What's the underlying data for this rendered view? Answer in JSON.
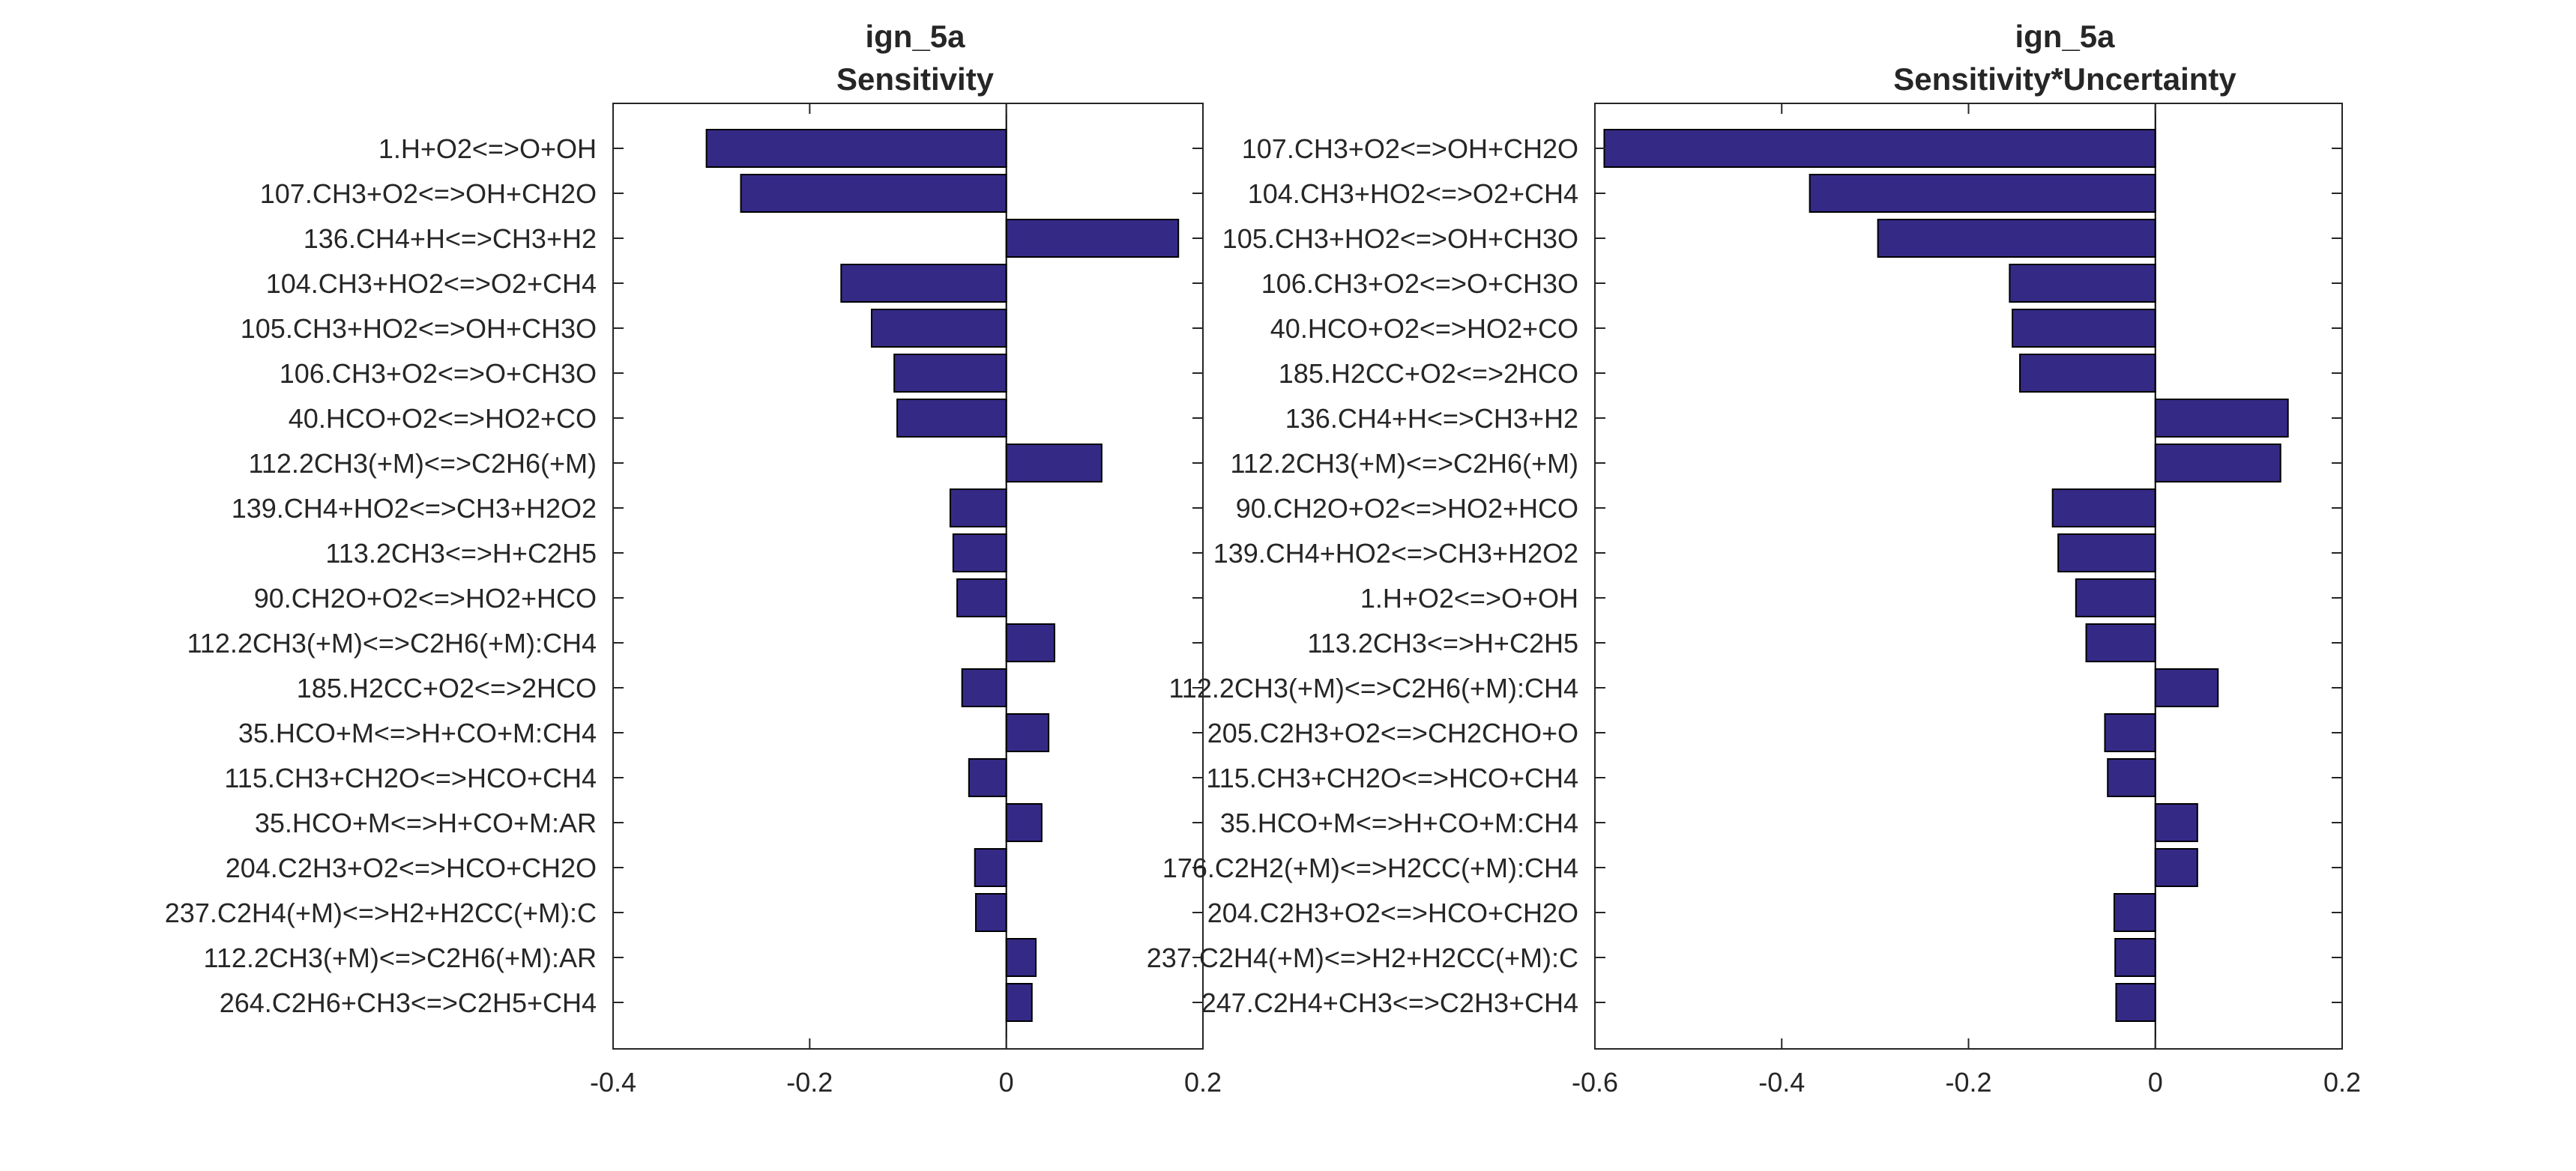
{
  "chart_data": [
    {
      "type": "bar",
      "orientation": "horizontal",
      "title": [
        "ign_5a",
        "Sensitivity"
      ],
      "xlim": [
        -0.4,
        0.2
      ],
      "xticks": [
        -0.4,
        -0.2,
        0,
        0.2
      ],
      "xtick_labels": [
        "-0.4",
        "-0.2",
        "0",
        "0.2"
      ],
      "bar_color": "#342a86",
      "grid": false,
      "categories": [
        "1.H+O2<=>O+OH",
        "107.CH3+O2<=>OH+CH2O",
        "136.CH4+H<=>CH3+H2",
        "104.CH3+HO2<=>O2+CH4",
        "105.CH3+HO2<=>OH+CH3O",
        "106.CH3+O2<=>O+CH3O",
        "40.HCO+O2<=>HO2+CO",
        "112.2CH3(+M)<=>C2H6(+M)",
        "139.CH4+HO2<=>CH3+H2O2",
        "113.2CH3<=>H+C2H5",
        "90.CH2O+O2<=>HO2+HCO",
        "112.2CH3(+M)<=>C2H6(+M):CH4",
        "185.H2CC+O2<=>2HCO",
        "35.HCO+M<=>H+CO+M:CH4",
        "115.CH3+CH2O<=>HCO+CH4",
        "35.HCO+M<=>H+CO+M:AR",
        "204.C2H3+O2<=>HCO+CH2O",
        "237.C2H4(+M)<=>H2+H2CC(+M):C",
        "112.2CH3(+M)<=>C2H6(+M):AR",
        "264.C2H6+CH3<=>C2H5+CH4"
      ],
      "values": [
        -0.305,
        -0.27,
        0.175,
        -0.168,
        -0.137,
        -0.114,
        -0.111,
        0.097,
        -0.057,
        -0.054,
        -0.05,
        0.049,
        -0.045,
        0.043,
        -0.038,
        0.036,
        -0.032,
        -0.031,
        0.03,
        0.026
      ]
    },
    {
      "type": "bar",
      "orientation": "horizontal",
      "title": [
        "ign_5a",
        "Sensitivity*Uncertainty"
      ],
      "xlim": [
        -0.6,
        0.2
      ],
      "xticks": [
        -0.6,
        -0.4,
        -0.2,
        0,
        0.2
      ],
      "xtick_labels": [
        "-0.6",
        "-0.4",
        "-0.2",
        "0",
        "0.2"
      ],
      "bar_color": "#342a86",
      "grid": false,
      "categories": [
        "107.CH3+O2<=>OH+CH2O",
        "104.CH3+HO2<=>O2+CH4",
        "105.CH3+HO2<=>OH+CH3O",
        "106.CH3+O2<=>O+CH3O",
        "40.HCO+O2<=>HO2+CO",
        "185.H2CC+O2<=>2HCO",
        "136.CH4+H<=>CH3+H2",
        "112.2CH3(+M)<=>C2H6(+M)",
        "90.CH2O+O2<=>HO2+HCO",
        "139.CH4+HO2<=>CH3+H2O2",
        "1.H+O2<=>O+OH",
        "113.2CH3<=>H+C2H5",
        "112.2CH3(+M)<=>C2H6(+M):CH4",
        "205.C2H3+O2<=>CH2CHO+O",
        "115.CH3+CH2O<=>HCO+CH4",
        "35.HCO+M<=>H+CO+M:CH4",
        "176.C2H2(+M)<=>H2CC(+M):CH4",
        "204.C2H3+O2<=>HCO+CH2O",
        "237.C2H4(+M)<=>H2+H2CC(+M):C",
        "247.C2H4+CH3<=>C2H3+CH4"
      ],
      "values": [
        -0.59,
        -0.37,
        -0.297,
        -0.156,
        -0.153,
        -0.145,
        0.142,
        0.134,
        -0.11,
        -0.104,
        -0.085,
        -0.074,
        0.067,
        -0.054,
        -0.051,
        0.045,
        0.045,
        -0.044,
        -0.043,
        -0.042
      ]
    }
  ]
}
